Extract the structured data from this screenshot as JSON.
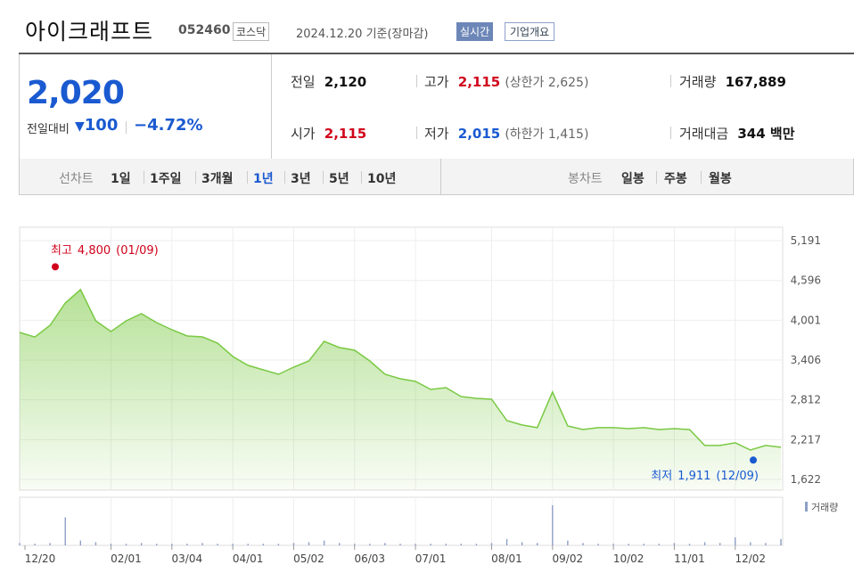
{
  "header": {
    "title": "아이크래프트",
    "code": "052460",
    "market": "코스닥",
    "date": "2024.12.20 기준(장마감)",
    "realtime": "실시간",
    "company": "기업개요"
  },
  "quote": {
    "price": "2,020",
    "change_label": "전일대비",
    "change": "100",
    "change_rate": "−4.72%"
  },
  "info": [
    {
      "label": "전일",
      "value": "2,120"
    },
    {
      "label": "고가",
      "value": "2,115",
      "sub": "(상한가 2,625)"
    },
    {
      "label": "거래량",
      "value": "167,889"
    },
    {
      "label": "시가",
      "value": "2,115"
    },
    {
      "label": "저가",
      "value": "2,015",
      "sub": "(하한가 1,415)"
    },
    {
      "label": "거래대금",
      "value": "344 백만"
    }
  ],
  "tabs": {
    "line_label": "선차트",
    "line": [
      "1일",
      "1주일",
      "3개월",
      "1년",
      "3년",
      "5년",
      "10년"
    ],
    "line_active": 3,
    "candle_label": "봉차트",
    "candle": [
      "일봉",
      "주봉",
      "월봉"
    ]
  },
  "chart_data": {
    "type": "area",
    "color": "#7ac943",
    "categories": [
      "12/20",
      null,
      null,
      null,
      null,
      null,
      "02/01",
      null,
      null,
      null,
      "03/04",
      null,
      null,
      null,
      "04/01",
      null,
      null,
      null,
      "05/02",
      null,
      null,
      null,
      "06/03",
      null,
      null,
      null,
      "07/01",
      null,
      null,
      null,
      null,
      "08/01",
      null,
      null,
      null,
      "09/02",
      null,
      null,
      null,
      "10/02",
      null,
      null,
      null,
      "11/01",
      null,
      null,
      null,
      "12/02",
      null,
      null,
      null
    ],
    "values": [
      3820,
      3750,
      3926,
      4259,
      4459,
      3993,
      3833,
      3993,
      4099,
      3966,
      3860,
      3766,
      3753,
      3660,
      3460,
      3327,
      3260,
      3194,
      3300,
      3393,
      3686,
      3593,
      3553,
      3393,
      3194,
      3127,
      3087,
      2967,
      2994,
      2861,
      2834,
      2821,
      2501,
      2435,
      2395,
      2928,
      2421,
      2368,
      2395,
      2395,
      2381,
      2395,
      2368,
      2381,
      2368,
      2129,
      2129,
      2169,
      2062,
      2129,
      2102
    ],
    "volume_label": "거래량",
    "volume": [
      3,
      2,
      3,
      35,
      6,
      4,
      2,
      2,
      3,
      2,
      2,
      2,
      3,
      2,
      2,
      2,
      2,
      2,
      3,
      4,
      6,
      3,
      2,
      2,
      3,
      2,
      2,
      2,
      2,
      2,
      2,
      3,
      8,
      4,
      3,
      50,
      6,
      3,
      2,
      2,
      2,
      2,
      2,
      3,
      2,
      4,
      3,
      10,
      4,
      3,
      8
    ],
    "volume_ylim": [
      0,
      60
    ],
    "ylim": [
      1462,
      5391
    ],
    "yticks": [
      {
        "value": 1622,
        "label": "1,622"
      },
      {
        "value": 2217,
        "label": "2,217"
      },
      {
        "value": 2812,
        "label": "2,812"
      },
      {
        "value": 3406,
        "label": "3,406"
      },
      {
        "value": 4001,
        "label": "4,001"
      },
      {
        "value": 4596,
        "label": "4,596"
      },
      {
        "value": 5191,
        "label": "5,191"
      }
    ],
    "grid": true,
    "high": {
      "label": "최고",
      "value": 4800,
      "value_label": "4,800",
      "date": "(01/09)",
      "color": "#d0021b"
    },
    "low": {
      "label": "최저",
      "value": 1911,
      "value_label": "1,911",
      "date": "(12/09)",
      "color": "#1a5ad1"
    }
  }
}
